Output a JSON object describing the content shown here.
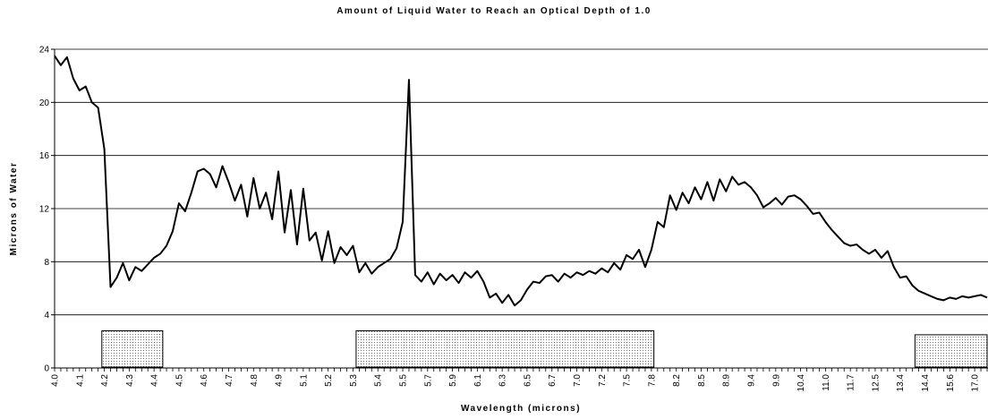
{
  "chart_data": {
    "type": "line",
    "title": "Amount of Liquid Water to Reach an Optical Depth of 1.0",
    "x_label": "Wavelength (microns)",
    "y_label": "Microns of Water",
    "categories": [
      "4.0",
      null,
      null,
      null,
      "4.1",
      null,
      null,
      null,
      "4.2",
      null,
      null,
      null,
      "4.3",
      null,
      null,
      null,
      "4.4",
      null,
      null,
      null,
      "4.5",
      null,
      null,
      null,
      "4.6",
      null,
      null,
      null,
      "4.7",
      null,
      null,
      null,
      "4.8",
      null,
      null,
      null,
      "4.9",
      null,
      null,
      null,
      "5.1",
      null,
      null,
      null,
      "5.2",
      null,
      null,
      null,
      "5.3",
      null,
      null,
      null,
      "5.4",
      null,
      null,
      null,
      "5.5",
      null,
      null,
      null,
      "5.7",
      null,
      null,
      null,
      "5.9",
      null,
      null,
      null,
      "6.1",
      null,
      null,
      null,
      "6.3",
      null,
      null,
      null,
      "6.5",
      null,
      null,
      null,
      "6.7",
      null,
      null,
      null,
      "7.0",
      null,
      null,
      null,
      "7.2",
      null,
      null,
      null,
      "7.5",
      null,
      null,
      null,
      "7.8",
      null,
      null,
      null,
      "8.2",
      null,
      null,
      null,
      "8.5",
      null,
      null,
      null,
      "8.9",
      null,
      null,
      null,
      "9.4",
      null,
      null,
      null,
      "9.9",
      null,
      null,
      null,
      "10.4",
      null,
      null,
      null,
      "11.0",
      null,
      null,
      null,
      "11.7",
      null,
      null,
      null,
      "12.5",
      null,
      null,
      null,
      "13.4",
      null,
      null,
      null,
      "14.4",
      null,
      null,
      null,
      "15.6",
      null,
      null,
      null,
      "17.0",
      null,
      null
    ],
    "values": [
      23.5,
      22.8,
      23.4,
      21.8,
      20.9,
      21.2,
      20.0,
      19.6,
      16.5,
      6.1,
      6.8,
      7.9,
      6.6,
      7.6,
      7.3,
      7.8,
      8.3,
      8.6,
      9.2,
      10.3,
      12.4,
      11.8,
      13.2,
      14.8,
      15.0,
      14.6,
      13.6,
      15.2,
      14.0,
      12.6,
      13.8,
      11.4,
      14.3,
      12.0,
      13.2,
      11.2,
      14.8,
      10.2,
      13.4,
      9.3,
      13.5,
      9.6,
      10.2,
      8.1,
      10.3,
      7.9,
      9.1,
      8.5,
      9.2,
      7.2,
      7.9,
      7.1,
      7.6,
      7.9,
      8.2,
      9.0,
      11.0,
      21.7,
      7.0,
      6.5,
      7.2,
      6.3,
      7.1,
      6.6,
      7.0,
      6.4,
      7.2,
      6.8,
      7.3,
      6.5,
      5.3,
      5.6,
      4.9,
      5.5,
      4.7,
      5.1,
      5.9,
      6.5,
      6.4,
      6.9,
      7.0,
      6.5,
      7.1,
      6.8,
      7.2,
      7.0,
      7.3,
      7.1,
      7.5,
      7.2,
      7.9,
      7.4,
      8.5,
      8.2,
      8.9,
      7.6,
      8.9,
      11.0,
      10.6,
      13.0,
      11.9,
      13.2,
      12.4,
      13.6,
      12.7,
      14.0,
      12.6,
      14.2,
      13.3,
      14.4,
      13.8,
      14.0,
      13.6,
      13.0,
      12.1,
      12.4,
      12.8,
      12.3,
      12.9,
      13.0,
      12.7,
      12.2,
      11.6,
      11.7,
      11.0,
      10.4,
      9.9,
      9.4,
      9.2,
      9.3,
      8.9,
      8.6,
      8.9,
      8.3,
      8.8,
      7.6,
      6.8,
      6.9,
      6.2,
      5.8,
      5.6,
      5.4,
      5.2,
      5.1,
      5.3,
      5.2,
      5.4,
      5.3,
      5.4,
      5.5,
      5.3
    ],
    "color": "#000000",
    "ylim": [
      0,
      24
    ],
    "yticks": [
      0,
      4,
      8,
      12,
      16,
      20,
      24
    ],
    "grid": true,
    "bands": [
      {
        "x0": 7.6,
        "x1": 17.4,
        "height": 2.8
      },
      {
        "x0": 48.5,
        "x1": 96.4,
        "height": 2.8
      },
      {
        "x0": 138.4,
        "x1": 150,
        "height": 2.5
      }
    ]
  }
}
